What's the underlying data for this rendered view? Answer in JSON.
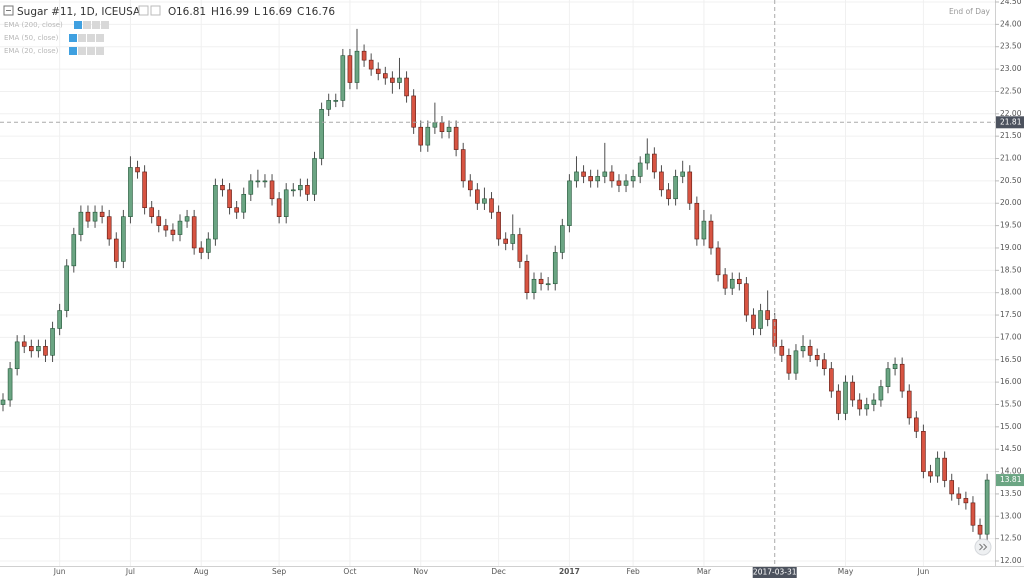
{
  "chart_data": {
    "type": "candlestick",
    "title": "Sugar #11, 1D, ICEUSA",
    "ohlc": [
      {
        "label": "O",
        "value": 16.81
      },
      {
        "label": "H",
        "value": 16.99
      },
      {
        "label": "L",
        "value": 16.69
      },
      {
        "label": "C",
        "value": 16.76
      }
    ],
    "indicators": [
      "EMA (200, close)",
      "EMA (50, close)",
      "EMA (20, close)"
    ],
    "status": "End of Day",
    "crosshair": {
      "x_label": "2017-03-31",
      "y": 21.81,
      "index": 109
    },
    "last_price": 13.81,
    "up_color": "#6ba583",
    "down_color": "#d75442",
    "grid": true,
    "ylim": [
      12,
      24.5
    ],
    "yticks": [
      {
        "value": 12,
        "label": "12.00"
      },
      {
        "value": 12.5,
        "label": "12.50"
      },
      {
        "value": 13,
        "label": "13.00"
      },
      {
        "value": 13.5,
        "label": "13.50"
      },
      {
        "value": 14,
        "label": "14.00"
      },
      {
        "value": 14.5,
        "label": "14.50"
      },
      {
        "value": 15,
        "label": "15.00"
      },
      {
        "value": 15.5,
        "label": "15.50"
      },
      {
        "value": 16,
        "label": "16.00"
      },
      {
        "value": 16.5,
        "label": "16.50"
      },
      {
        "value": 17,
        "label": "17.00"
      },
      {
        "value": 17.5,
        "label": "17.50"
      },
      {
        "value": 18,
        "label": "18.00"
      },
      {
        "value": 18.5,
        "label": "18.50"
      },
      {
        "value": 19,
        "label": "19.00"
      },
      {
        "value": 19.5,
        "label": "19.50"
      },
      {
        "value": 20,
        "label": "20.00"
      },
      {
        "value": 20.5,
        "label": "20.50"
      },
      {
        "value": 21,
        "label": "21.00"
      },
      {
        "value": 21.5,
        "label": "21.50"
      },
      {
        "value": 22,
        "label": "22.00"
      },
      {
        "value": 22.5,
        "label": "22.50"
      },
      {
        "value": 23,
        "label": "23.00"
      },
      {
        "value": 23.5,
        "label": "23.50"
      },
      {
        "value": 24,
        "label": "24.00"
      },
      {
        "value": 24.5,
        "label": "24.50"
      }
    ],
    "categories": [
      null,
      null,
      null,
      null,
      null,
      null,
      null,
      null,
      "Jun",
      null,
      null,
      null,
      null,
      null,
      null,
      null,
      null,
      null,
      "Jul",
      null,
      null,
      null,
      null,
      null,
      null,
      null,
      null,
      null,
      "Aug",
      null,
      null,
      null,
      null,
      null,
      null,
      null,
      null,
      null,
      null,
      "Sep",
      null,
      null,
      null,
      null,
      null,
      null,
      null,
      null,
      null,
      "Oct",
      null,
      null,
      null,
      null,
      null,
      null,
      null,
      null,
      null,
      "Nov",
      null,
      null,
      null,
      null,
      null,
      null,
      null,
      null,
      null,
      null,
      "Dec",
      null,
      null,
      null,
      null,
      null,
      null,
      null,
      null,
      null,
      "2017",
      null,
      null,
      null,
      null,
      null,
      null,
      null,
      null,
      "Feb",
      null,
      null,
      null,
      null,
      null,
      null,
      null,
      null,
      null,
      "Mar",
      null,
      null,
      null,
      null,
      null,
      null,
      null,
      null,
      null,
      null,
      null,
      null,
      null,
      null,
      null,
      null,
      null,
      null,
      null,
      "May",
      null,
      null,
      null,
      null,
      null,
      null,
      null,
      null,
      null,
      null,
      "Jun",
      null,
      null,
      null,
      null,
      null,
      null,
      null,
      null,
      null
    ],
    "candles": [
      [
        15.5,
        15.75,
        15.35,
        15.6
      ],
      [
        15.6,
        16.45,
        15.45,
        16.3
      ],
      [
        16.3,
        17.05,
        16.15,
        16.9
      ],
      [
        16.9,
        17.05,
        16.65,
        16.8
      ],
      [
        16.8,
        16.95,
        16.55,
        16.7
      ],
      [
        16.7,
        16.95,
        16.55,
        16.8
      ],
      [
        16.8,
        16.95,
        16.45,
        16.6
      ],
      [
        16.6,
        17.35,
        16.45,
        17.2
      ],
      [
        17.2,
        17.75,
        17.05,
        17.6
      ],
      [
        17.6,
        18.75,
        17.45,
        18.6
      ],
      [
        18.6,
        19.45,
        18.45,
        19.3
      ],
      [
        19.3,
        19.95,
        19.15,
        19.8
      ],
      [
        19.8,
        19.95,
        19.45,
        19.6
      ],
      [
        19.6,
        19.95,
        19.45,
        19.8
      ],
      [
        19.8,
        19.95,
        19.55,
        19.7
      ],
      [
        19.7,
        19.85,
        19.05,
        19.2
      ],
      [
        19.2,
        19.35,
        18.55,
        18.7
      ],
      [
        18.7,
        19.85,
        18.55,
        19.7
      ],
      [
        19.7,
        21.05,
        19.55,
        20.8
      ],
      [
        20.8,
        20.95,
        20.55,
        20.7
      ],
      [
        20.7,
        20.85,
        19.75,
        19.9
      ],
      [
        19.9,
        20.05,
        19.55,
        19.7
      ],
      [
        19.7,
        19.85,
        19.35,
        19.5
      ],
      [
        19.5,
        19.65,
        19.25,
        19.4
      ],
      [
        19.4,
        19.55,
        19.15,
        19.3
      ],
      [
        19.3,
        19.75,
        19.15,
        19.6
      ],
      [
        19.6,
        19.85,
        19.45,
        19.7
      ],
      [
        19.7,
        19.85,
        18.85,
        19.0
      ],
      [
        19.0,
        19.15,
        18.75,
        18.9
      ],
      [
        18.9,
        19.35,
        18.75,
        19.2
      ],
      [
        19.2,
        20.55,
        19.05,
        20.4
      ],
      [
        20.4,
        20.55,
        20.15,
        20.3
      ],
      [
        20.3,
        20.45,
        19.75,
        19.9
      ],
      [
        19.9,
        20.05,
        19.65,
        19.8
      ],
      [
        19.8,
        20.35,
        19.65,
        20.2
      ],
      [
        20.2,
        20.65,
        20.05,
        20.5
      ],
      [
        20.5,
        20.75,
        20.35,
        20.5
      ],
      [
        20.5,
        20.65,
        20.35,
        20.5
      ],
      [
        20.5,
        20.65,
        19.95,
        20.1
      ],
      [
        20.1,
        20.25,
        19.55,
        19.7
      ],
      [
        19.7,
        20.45,
        19.55,
        20.3
      ],
      [
        20.3,
        20.45,
        20.15,
        20.3
      ],
      [
        20.3,
        20.55,
        20.15,
        20.4
      ],
      [
        20.4,
        20.55,
        20.05,
        20.2
      ],
      [
        20.2,
        21.15,
        20.05,
        21.0
      ],
      [
        21.0,
        22.25,
        20.85,
        22.1
      ],
      [
        22.1,
        22.45,
        21.95,
        22.3
      ],
      [
        22.3,
        22.45,
        22.15,
        22.3
      ],
      [
        22.3,
        23.45,
        22.15,
        23.3
      ],
      [
        23.3,
        23.45,
        22.55,
        22.7
      ],
      [
        22.7,
        23.9,
        22.55,
        23.4
      ],
      [
        23.4,
        23.55,
        23.05,
        23.2
      ],
      [
        23.2,
        23.35,
        22.85,
        23.0
      ],
      [
        23.0,
        23.15,
        22.75,
        22.9
      ],
      [
        22.9,
        23.05,
        22.65,
        22.8
      ],
      [
        22.8,
        22.95,
        22.45,
        22.7
      ],
      [
        22.7,
        23.25,
        22.55,
        22.8
      ],
      [
        22.8,
        22.95,
        22.25,
        22.4
      ],
      [
        22.4,
        22.55,
        21.55,
        21.7
      ],
      [
        21.7,
        21.85,
        21.15,
        21.3
      ],
      [
        21.3,
        21.85,
        21.15,
        21.7
      ],
      [
        21.7,
        22.25,
        21.55,
        21.8
      ],
      [
        21.8,
        21.95,
        21.45,
        21.6
      ],
      [
        21.6,
        21.85,
        21.45,
        21.7
      ],
      [
        21.7,
        21.85,
        21.05,
        21.2
      ],
      [
        21.2,
        21.35,
        20.35,
        20.5
      ],
      [
        20.5,
        20.65,
        20.15,
        20.3
      ],
      [
        20.3,
        20.45,
        19.85,
        20.0
      ],
      [
        20.0,
        20.35,
        19.85,
        20.1
      ],
      [
        20.1,
        20.25,
        19.65,
        19.8
      ],
      [
        19.8,
        19.95,
        19.05,
        19.2
      ],
      [
        19.2,
        19.35,
        18.95,
        19.1
      ],
      [
        19.1,
        19.75,
        18.95,
        19.3
      ],
      [
        19.3,
        19.45,
        18.55,
        18.7
      ],
      [
        18.7,
        18.85,
        17.85,
        18.0
      ],
      [
        18.0,
        18.45,
        17.85,
        18.3
      ],
      [
        18.3,
        18.45,
        18.05,
        18.2
      ],
      [
        18.2,
        18.35,
        18.05,
        18.2
      ],
      [
        18.2,
        19.05,
        18.05,
        18.9
      ],
      [
        18.9,
        19.65,
        18.75,
        19.5
      ],
      [
        19.5,
        20.65,
        19.35,
        20.5
      ],
      [
        20.5,
        21.05,
        20.35,
        20.7
      ],
      [
        20.7,
        20.85,
        20.45,
        20.6
      ],
      [
        20.6,
        20.75,
        20.35,
        20.5
      ],
      [
        20.5,
        20.75,
        20.35,
        20.6
      ],
      [
        20.6,
        21.35,
        20.45,
        20.7
      ],
      [
        20.7,
        20.85,
        20.35,
        20.5
      ],
      [
        20.5,
        20.65,
        20.25,
        20.4
      ],
      [
        20.4,
        20.65,
        20.25,
        20.5
      ],
      [
        20.5,
        20.75,
        20.35,
        20.6
      ],
      [
        20.6,
        21.05,
        20.45,
        20.9
      ],
      [
        20.9,
        21.45,
        20.75,
        21.1
      ],
      [
        21.1,
        21.25,
        20.55,
        20.7
      ],
      [
        20.7,
        20.85,
        20.15,
        20.3
      ],
      [
        20.3,
        20.45,
        19.95,
        20.1
      ],
      [
        20.1,
        20.75,
        19.95,
        20.6
      ],
      [
        20.6,
        20.95,
        20.45,
        20.7
      ],
      [
        20.7,
        20.85,
        19.85,
        20.0
      ],
      [
        20.0,
        20.15,
        19.05,
        19.2
      ],
      [
        19.2,
        19.85,
        19.05,
        19.6
      ],
      [
        19.6,
        19.75,
        18.85,
        19.0
      ],
      [
        19.0,
        19.15,
        18.25,
        18.4
      ],
      [
        18.4,
        18.55,
        17.95,
        18.1
      ],
      [
        18.1,
        18.45,
        17.95,
        18.3
      ],
      [
        18.3,
        18.45,
        18.05,
        18.2
      ],
      [
        18.2,
        18.35,
        17.35,
        17.5
      ],
      [
        17.5,
        17.65,
        17.05,
        17.2
      ],
      [
        17.2,
        17.75,
        17.05,
        17.6
      ],
      [
        17.6,
        18.05,
        17.25,
        17.4
      ],
      [
        17.4,
        17.55,
        16.65,
        16.8
      ],
      [
        16.8,
        16.95,
        16.45,
        16.6
      ],
      [
        16.6,
        16.75,
        16.05,
        16.2
      ],
      [
        16.2,
        16.85,
        16.05,
        16.7
      ],
      [
        16.7,
        17.05,
        16.55,
        16.8
      ],
      [
        16.8,
        16.95,
        16.45,
        16.6
      ],
      [
        16.6,
        16.75,
        16.35,
        16.5
      ],
      [
        16.5,
        16.65,
        16.15,
        16.3
      ],
      [
        16.3,
        16.45,
        15.65,
        15.8
      ],
      [
        15.8,
        15.95,
        15.15,
        15.3
      ],
      [
        15.3,
        16.15,
        15.15,
        16.0
      ],
      [
        16.0,
        16.15,
        15.45,
        15.6
      ],
      [
        15.6,
        15.75,
        15.25,
        15.4
      ],
      [
        15.4,
        15.65,
        15.25,
        15.5
      ],
      [
        15.5,
        15.75,
        15.35,
        15.6
      ],
      [
        15.6,
        16.05,
        15.45,
        15.9
      ],
      [
        15.9,
        16.45,
        15.75,
        16.3
      ],
      [
        16.3,
        16.55,
        16.15,
        16.4
      ],
      [
        16.4,
        16.55,
        15.65,
        15.8
      ],
      [
        15.8,
        15.95,
        15.05,
        15.2
      ],
      [
        15.2,
        15.35,
        14.75,
        14.9
      ],
      [
        14.9,
        15.05,
        13.85,
        14.0
      ],
      [
        14.0,
        14.15,
        13.75,
        13.9
      ],
      [
        13.9,
        14.45,
        13.75,
        14.3
      ],
      [
        14.3,
        14.45,
        13.65,
        13.8
      ],
      [
        13.8,
        13.95,
        13.35,
        13.5
      ],
      [
        13.5,
        13.65,
        13.25,
        13.4
      ],
      [
        13.4,
        13.55,
        13.15,
        13.3
      ],
      [
        13.3,
        13.45,
        12.65,
        12.8
      ],
      [
        12.8,
        12.95,
        12.45,
        12.6
      ],
      [
        12.6,
        13.95,
        12.45,
        13.81
      ]
    ]
  }
}
